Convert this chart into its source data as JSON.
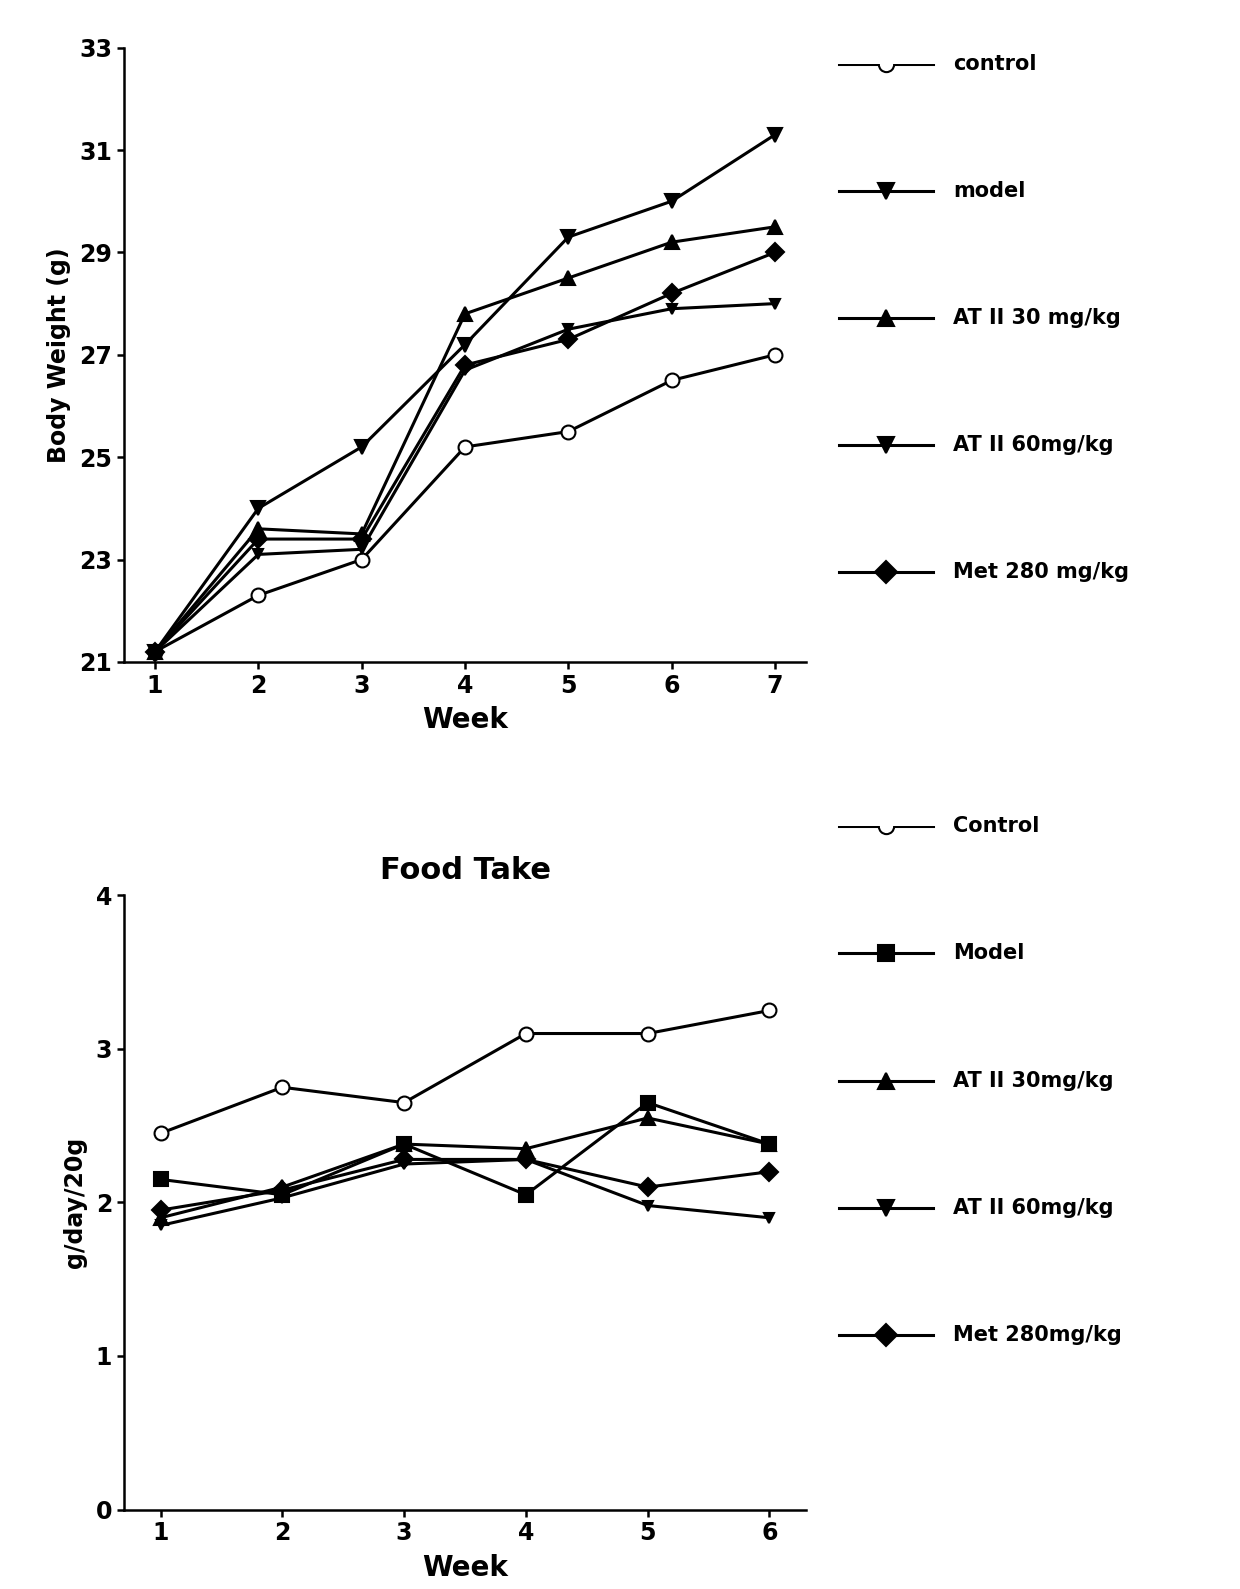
{
  "plot1": {
    "title": "",
    "xlabel": "Week",
    "ylabel": "Body Weight (g)",
    "xlim": [
      0.7,
      7.3
    ],
    "ylim": [
      21,
      33
    ],
    "yticks": [
      21,
      23,
      25,
      27,
      29,
      31,
      33
    ],
    "xticks": [
      1,
      2,
      3,
      4,
      5,
      6,
      7
    ],
    "series": [
      {
        "label": "control",
        "x": [
          1,
          2,
          3,
          4,
          5,
          6,
          7
        ],
        "y": [
          21.2,
          22.3,
          23.0,
          25.2,
          25.5,
          26.5,
          27.0
        ],
        "marker": "o",
        "markerfacecolor": "white",
        "color": "black",
        "linewidth": 2.2,
        "markersize": 10
      },
      {
        "label": "model",
        "x": [
          1,
          2,
          3,
          4,
          5,
          6,
          7
        ],
        "y": [
          21.2,
          24.0,
          25.2,
          27.2,
          29.3,
          30.0,
          31.3
        ],
        "marker": "v",
        "markerfacecolor": "black",
        "color": "black",
        "linewidth": 2.2,
        "markersize": 10
      },
      {
        "label": "AT II 30 mg/kg",
        "x": [
          1,
          2,
          3,
          4,
          5,
          6,
          7
        ],
        "y": [
          21.2,
          23.6,
          23.5,
          27.8,
          28.5,
          29.2,
          29.5
        ],
        "marker": "^",
        "markerfacecolor": "black",
        "color": "black",
        "linewidth": 2.2,
        "markersize": 10
      },
      {
        "label": "AT II 60mg/kg",
        "x": [
          1,
          2,
          3,
          4,
          5,
          6,
          7
        ],
        "y": [
          21.2,
          23.1,
          23.2,
          26.7,
          27.5,
          27.9,
          28.0
        ],
        "marker": "v",
        "markerfacecolor": "black",
        "color": "black",
        "linewidth": 2.2,
        "markersize": 7
      },
      {
        "label": "Met 280 mg/kg",
        "x": [
          1,
          2,
          3,
          4,
          5,
          6,
          7
        ],
        "y": [
          21.2,
          23.4,
          23.4,
          26.8,
          27.3,
          28.2,
          29.0
        ],
        "marker": "D",
        "markerfacecolor": "black",
        "color": "black",
        "linewidth": 2.2,
        "markersize": 9
      }
    ]
  },
  "plot2": {
    "title": "Food Take",
    "xlabel": "Week",
    "ylabel": "g/day/20g",
    "xlim": [
      0.7,
      6.3
    ],
    "ylim": [
      0,
      4
    ],
    "yticks": [
      0,
      1,
      2,
      3,
      4
    ],
    "xticks": [
      1,
      2,
      3,
      4,
      5,
      6
    ],
    "series": [
      {
        "label": "Control",
        "x": [
          1,
          2,
          3,
          4,
          5,
          6
        ],
        "y": [
          2.45,
          2.75,
          2.65,
          3.1,
          3.1,
          3.25
        ],
        "marker": "o",
        "markerfacecolor": "white",
        "color": "black",
        "linewidth": 2.2,
        "markersize": 10
      },
      {
        "label": "Model",
        "x": [
          1,
          2,
          3,
          4,
          5,
          6
        ],
        "y": [
          2.15,
          2.05,
          2.38,
          2.05,
          2.65,
          2.38
        ],
        "marker": "s",
        "markerfacecolor": "black",
        "color": "black",
        "linewidth": 2.2,
        "markersize": 10
      },
      {
        "label": "AT II 30mg/kg",
        "x": [
          1,
          2,
          3,
          4,
          5,
          6
        ],
        "y": [
          1.9,
          2.1,
          2.38,
          2.35,
          2.55,
          2.38
        ],
        "marker": "^",
        "markerfacecolor": "black",
        "color": "black",
        "linewidth": 2.2,
        "markersize": 10
      },
      {
        "label": "AT II 60mg/kg",
        "x": [
          1,
          2,
          3,
          4,
          5,
          6
        ],
        "y": [
          1.85,
          2.03,
          2.25,
          2.28,
          1.98,
          1.9
        ],
        "marker": "v",
        "markerfacecolor": "black",
        "color": "black",
        "linewidth": 2.2,
        "markersize": 7
      },
      {
        "label": "Met 280mg/kg",
        "x": [
          1,
          2,
          3,
          4,
          5,
          6
        ],
        "y": [
          1.95,
          2.08,
          2.28,
          2.28,
          2.1,
          2.2
        ],
        "marker": "D",
        "markerfacecolor": "black",
        "color": "black",
        "linewidth": 2.2,
        "markersize": 9
      }
    ]
  },
  "background_color": "#ffffff",
  "legend1_entries": [
    {
      "label": "control",
      "marker": "o",
      "mfc": "white"
    },
    {
      "label": "model",
      "marker": "v",
      "mfc": "black"
    },
    {
      "label": "AT II 30 mg/kg",
      "marker": "^",
      "mfc": "black"
    },
    {
      "label": "AT II 60mg/kg",
      "marker": "v",
      "mfc": "black"
    },
    {
      "label": "Met 280 mg/kg",
      "marker": "D",
      "mfc": "black"
    }
  ],
  "legend2_entries": [
    {
      "label": "Control",
      "marker": "o",
      "mfc": "white"
    },
    {
      "label": "Model",
      "marker": "s",
      "mfc": "black"
    },
    {
      "label": "AT II 30mg/kg",
      "marker": "^",
      "mfc": "black"
    },
    {
      "label": "AT II 60mg/kg",
      "marker": "v",
      "mfc": "black"
    },
    {
      "label": "Met 280mg/kg",
      "marker": "D",
      "mfc": "black"
    }
  ]
}
